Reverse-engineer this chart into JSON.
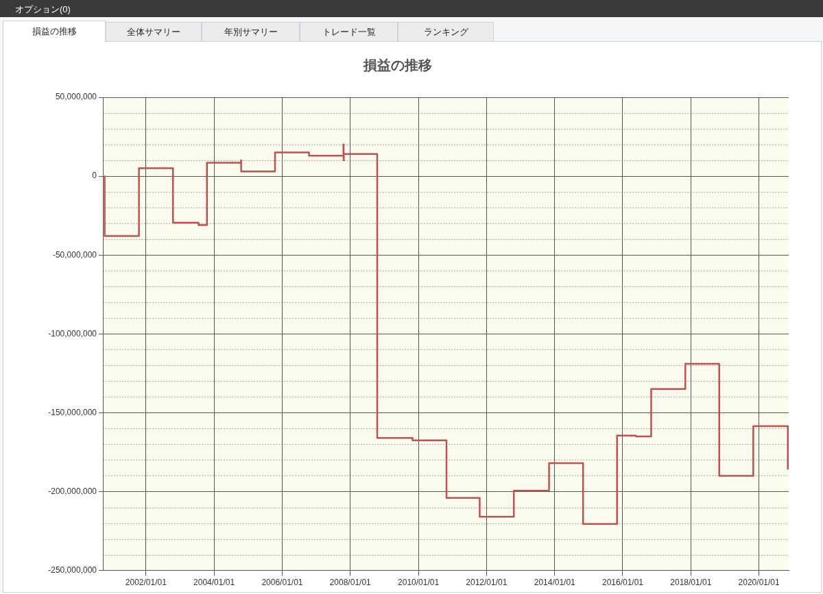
{
  "chart_data": {
    "type": "step",
    "title": "損益の推移",
    "annotations": [
      "オプション(0)",
      "損益の推移",
      "全体サマリー",
      "年別サマリー",
      "トレード一覧",
      "ランキング"
    ],
    "x": [
      "2000-10-12",
      "2000-10-15",
      "2001-10-18",
      "2002-10-18",
      "2003-07-19",
      "2003-10-17",
      "2004-10-16",
      "2004-10-18",
      "2005-10-16",
      "2006-10-16",
      "2007-10-20",
      "2007-10-22",
      "2007-10-24",
      "2008-10-16",
      "2009-10-30",
      "2010-10-29",
      "2011-10-20",
      "2012-10-20",
      "2013-11-02",
      "2014-11-02",
      "2015-11-01",
      "2016-05-21",
      "2016-11-01",
      "2017-11-02",
      "2018-11-01",
      "2019-11-01",
      "2020-11-06"
    ],
    "series": [
      {
        "color": "#c0504d",
        "values": [
          0,
          -38000000,
          5000000,
          -29500000,
          -31000000,
          8500000,
          10000000,
          3000000,
          15000000,
          13000000,
          20000000,
          10000000,
          14000000,
          -166000000,
          -167500000,
          -204000000,
          -216000000,
          -199500000,
          -182000000,
          -220500000,
          -164500000,
          -165000000,
          -135000000,
          -119000000,
          -190000000,
          -158500000,
          -186000000
        ]
      }
    ],
    "xlim": [
      "2000-09-26",
      "2020-11-15"
    ],
    "xticks": [
      {
        "value": "2002-01-01",
        "label": "2002/01/01"
      },
      {
        "value": "2004-01-01",
        "label": "2004/01/01"
      },
      {
        "value": "2006-01-01",
        "label": "2006/01/01"
      },
      {
        "value": "2008-01-01",
        "label": "2008/01/01"
      },
      {
        "value": "2010-01-01",
        "label": "2010/01/01"
      },
      {
        "value": "2012-01-01",
        "label": "2012/01/01"
      },
      {
        "value": "2014-01-01",
        "label": "2014/01/01"
      },
      {
        "value": "2016-01-01",
        "label": "2016/01/01"
      },
      {
        "value": "2018-01-01",
        "label": "2018/01/01"
      },
      {
        "value": "2020-01-01",
        "label": "2020/01/01"
      }
    ],
    "ylim": [
      -250000000,
      50000000
    ],
    "yticks": [
      {
        "value": -250000000,
        "label": "-250,000,000"
      },
      {
        "value": -240000000,
        "label": null
      },
      {
        "value": -230000000,
        "label": null
      },
      {
        "value": -220000000,
        "label": null
      },
      {
        "value": -210000000,
        "label": null
      },
      {
        "value": -200000000,
        "label": "-200,000,000"
      },
      {
        "value": -190000000,
        "label": null
      },
      {
        "value": -180000000,
        "label": null
      },
      {
        "value": -170000000,
        "label": null
      },
      {
        "value": -160000000,
        "label": null
      },
      {
        "value": -150000000,
        "label": "-150,000,000"
      },
      {
        "value": -140000000,
        "label": null
      },
      {
        "value": -130000000,
        "label": null
      },
      {
        "value": -120000000,
        "label": null
      },
      {
        "value": -110000000,
        "label": null
      },
      {
        "value": -100000000,
        "label": "-100,000,000"
      },
      {
        "value": -90000000,
        "label": null
      },
      {
        "value": -80000000,
        "label": null
      },
      {
        "value": -70000000,
        "label": null
      },
      {
        "value": -60000000,
        "label": null
      },
      {
        "value": -50000000,
        "label": "-50,000,000"
      },
      {
        "value": -40000000,
        "label": null
      },
      {
        "value": -30000000,
        "label": null
      },
      {
        "value": -20000000,
        "label": null
      },
      {
        "value": -10000000,
        "label": null
      },
      {
        "value": 0,
        "label": "0"
      },
      {
        "value": 10000000,
        "label": null
      },
      {
        "value": 20000000,
        "label": null
      },
      {
        "value": 30000000,
        "label": null
      },
      {
        "value": 40000000,
        "label": null
      },
      {
        "value": 50000000,
        "label": "50,000,000"
      }
    ],
    "grid": true,
    "legend": false
  }
}
